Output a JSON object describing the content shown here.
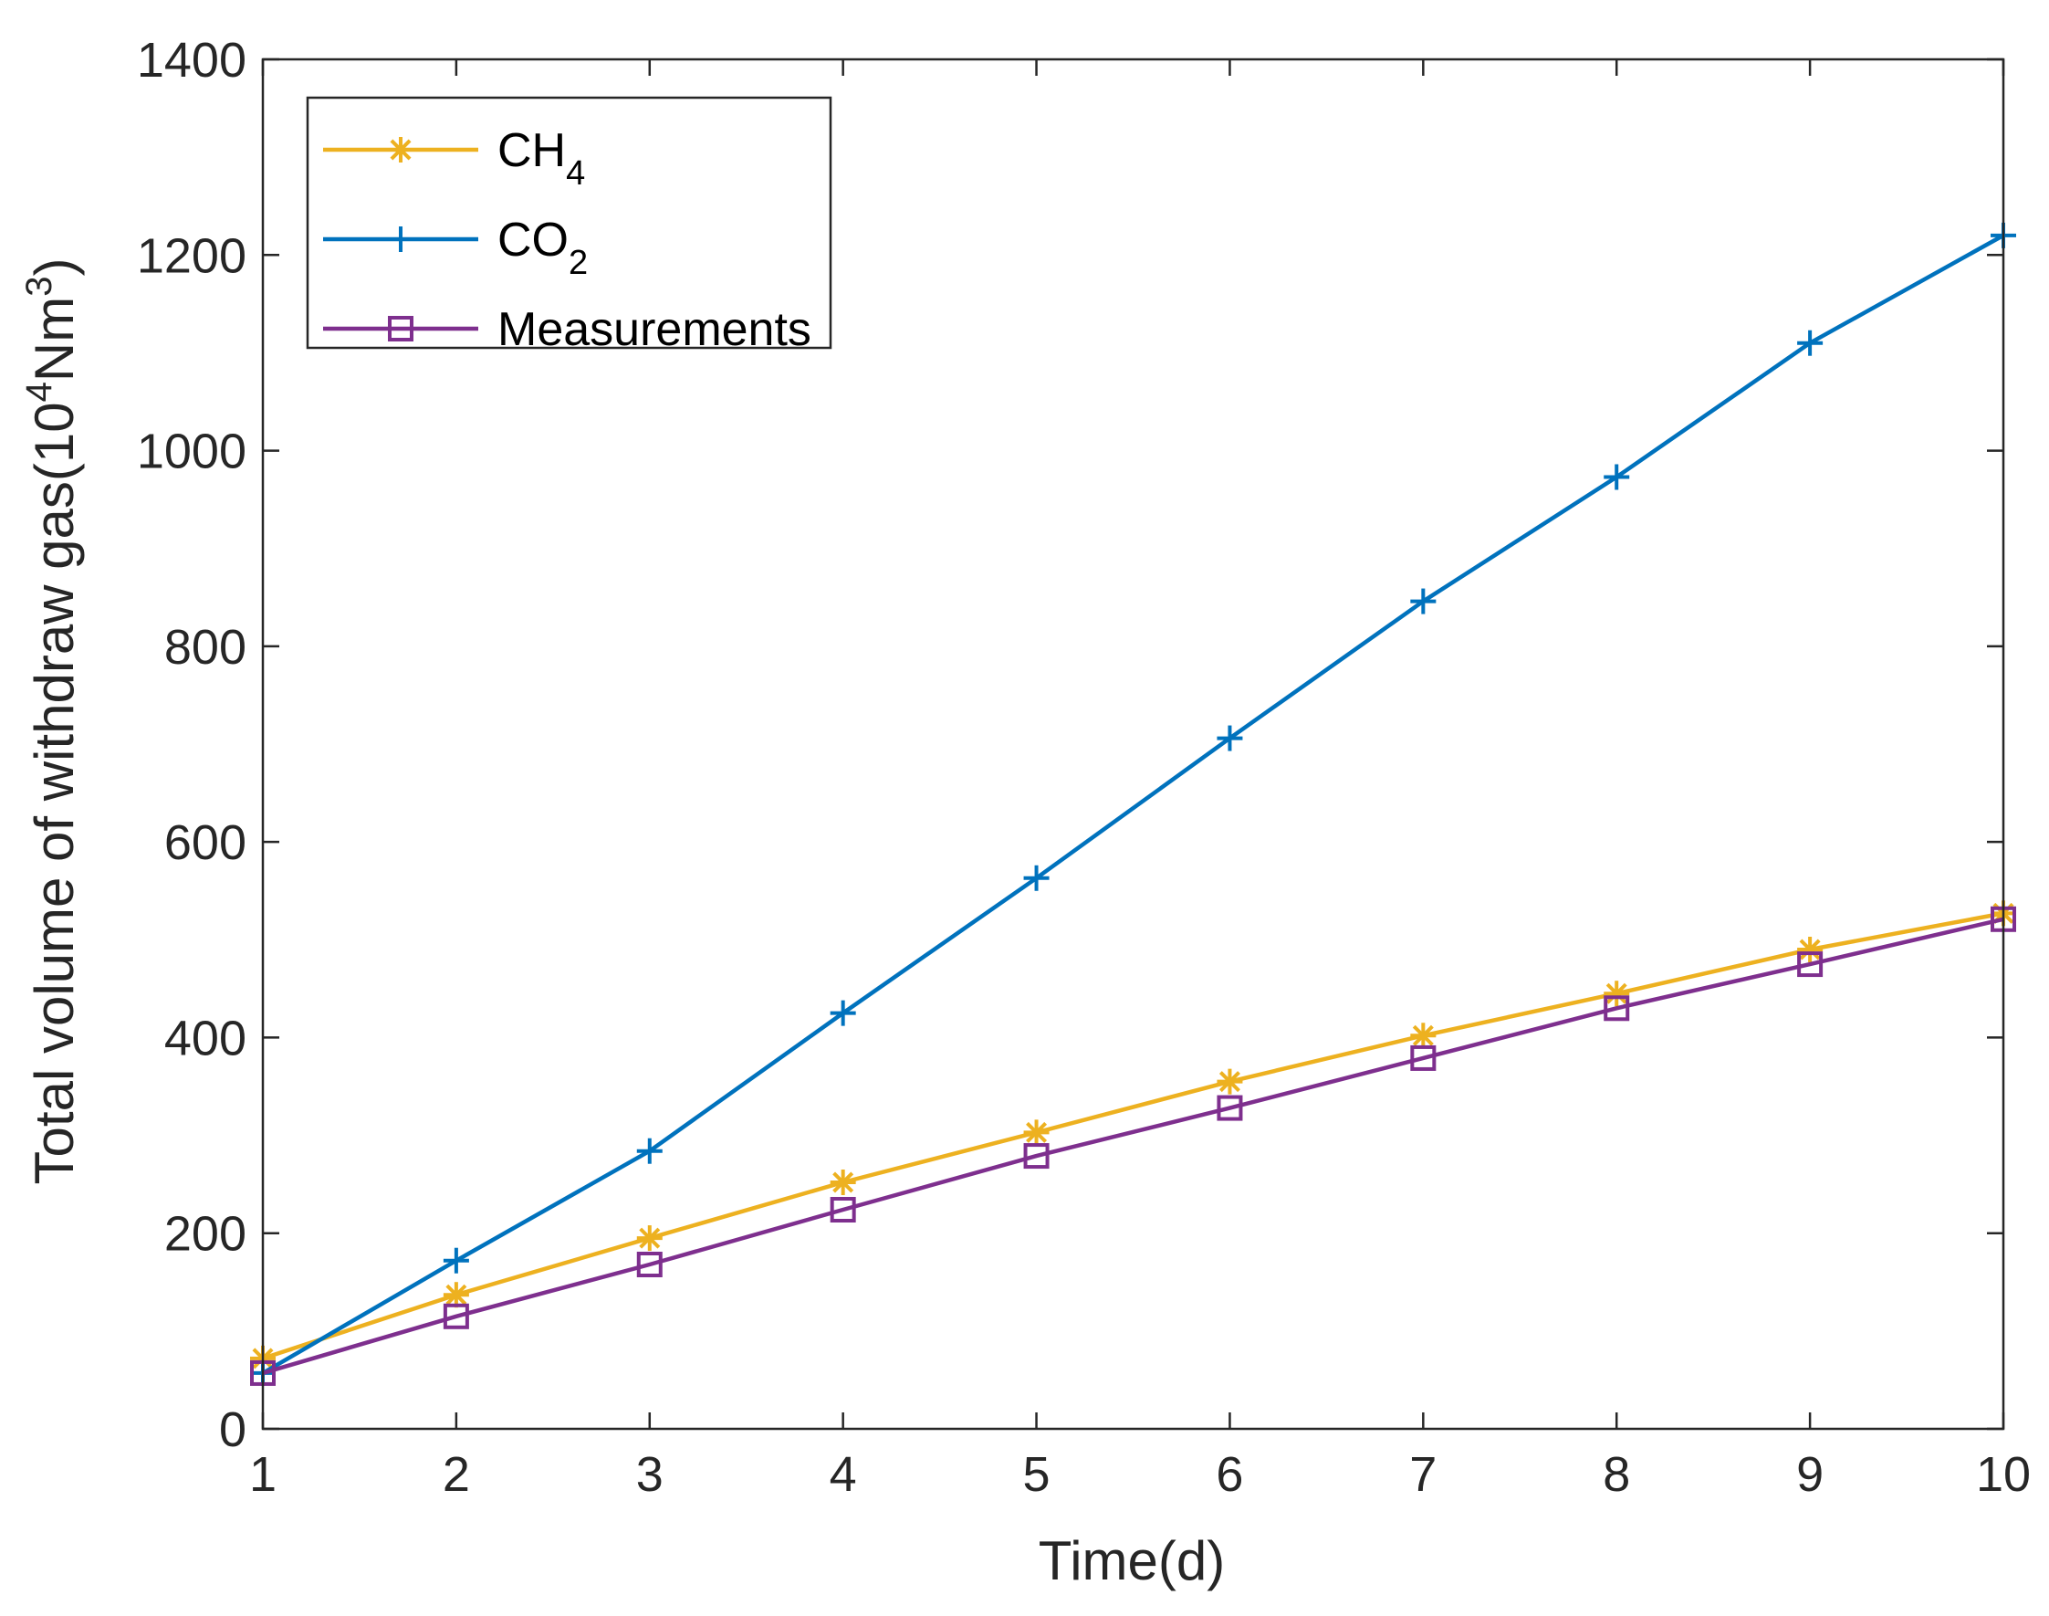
{
  "chart_data": {
    "type": "line",
    "title": "",
    "xlabel": "Time(d)",
    "ylabel": {
      "text": "Total volume of withdraw gas(10",
      "sup1": "4",
      "unit": "Nm",
      "sup2": "3",
      "close": ")"
    },
    "xlim": [
      1,
      10
    ],
    "ylim": [
      0,
      1400
    ],
    "x": [
      1,
      2,
      3,
      4,
      5,
      6,
      7,
      8,
      9,
      10
    ],
    "xticks": [
      "1",
      "2",
      "3",
      "4",
      "5",
      "6",
      "7",
      "8",
      "9",
      "10"
    ],
    "yticks": [
      "0",
      "200",
      "400",
      "600",
      "800",
      "1000",
      "1200",
      "1400"
    ],
    "grid": false,
    "legend_position": "top-left",
    "series": [
      {
        "key": "ch4",
        "name": "CH",
        "subscript": "4",
        "color": "#EDB120",
        "marker": "asterisk",
        "values": [
          72,
          137,
          195,
          252,
          303,
          355,
          402,
          445,
          490,
          527
        ]
      },
      {
        "key": "co2",
        "name": "CO",
        "subscript": "2",
        "color": "#0072BD",
        "marker": "plus",
        "values": [
          57,
          172,
          284,
          425,
          563,
          706,
          846,
          973,
          1110,
          1220
        ]
      },
      {
        "key": "measurements",
        "name": "Measurements",
        "subscript": "",
        "color": "#7E2F8E",
        "marker": "square",
        "values": [
          57,
          115,
          168,
          224,
          279,
          328,
          379,
          430,
          475,
          521
        ]
      }
    ]
  }
}
